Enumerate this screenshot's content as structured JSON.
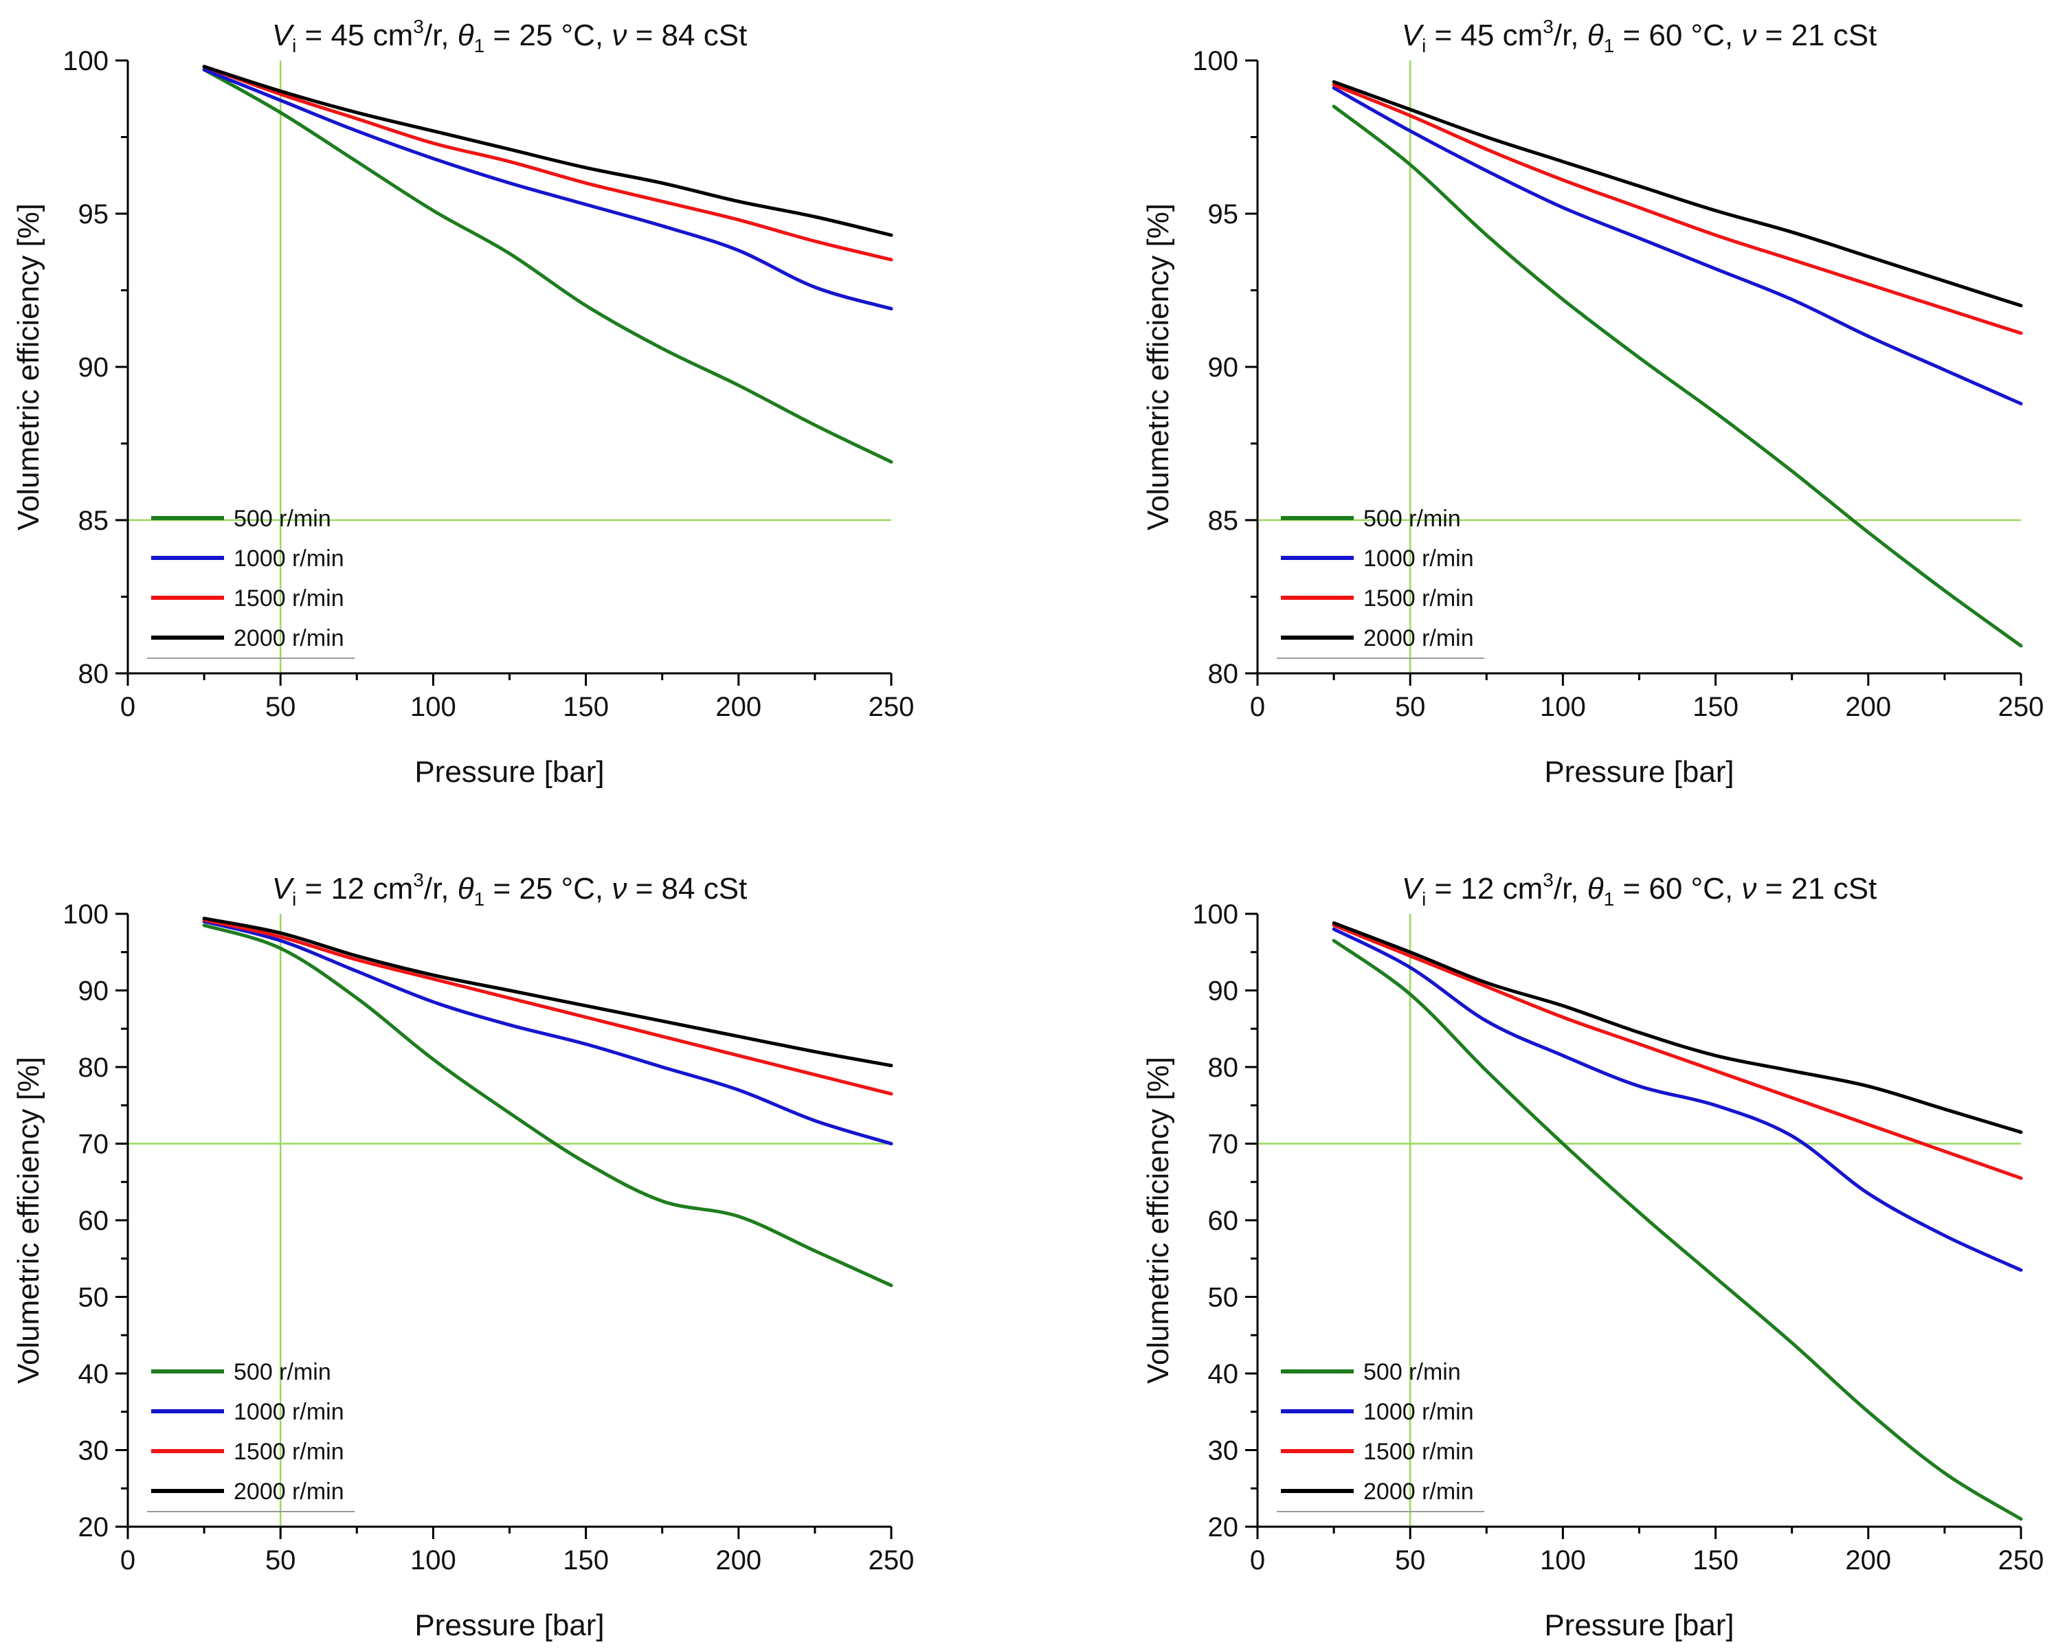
{
  "figure": {
    "colors": {
      "refline": "#9ad95a",
      "axis": "#000000",
      "text": "#111111",
      "legend_underline": "#9a9a9a"
    },
    "chart_data": [
      {
        "type": "line",
        "title": {
          "V_sym": "V",
          "V_sub": "i",
          "volume": "45 cm",
          "volume_sup": "3",
          "volume_unit": "/r,",
          "theta_sym": "θ",
          "theta_sub": "1",
          "temperature": "25 °C,",
          "nu_sym": "ν",
          "viscosity": "84 cSt"
        },
        "xlabel": "Pressure [bar]",
        "ylabel": "Volumetric efficiency [%]",
        "xlim": [
          0,
          250
        ],
        "ylim": [
          80,
          100
        ],
        "xticks": [
          0,
          50,
          100,
          150,
          200,
          250
        ],
        "yticks": [
          80,
          85,
          90,
          95,
          100
        ],
        "minor_ticks": true,
        "reference_lines": {
          "x": 50,
          "y": 85
        },
        "legend_position": "bottom-left",
        "series": [
          {
            "name": "500 r/min",
            "color": "#1e7d1e",
            "x": [
              25,
              50,
              75,
              100,
              125,
              150,
              175,
              200,
              225,
              250
            ],
            "y": [
              99.7,
              98.3,
              96.7,
              95.1,
              93.7,
              92.0,
              90.6,
              89.4,
              88.1,
              86.9
            ]
          },
          {
            "name": "1000 r/min",
            "color": "#1515cf",
            "x": [
              25,
              50,
              75,
              100,
              125,
              150,
              175,
              200,
              225,
              250
            ],
            "y": [
              99.7,
              98.7,
              97.7,
              96.8,
              96.0,
              95.3,
              94.6,
              93.8,
              92.6,
              91.9
            ]
          },
          {
            "name": "1500 r/min",
            "color": "#f01414",
            "x": [
              25,
              50,
              75,
              100,
              125,
              150,
              175,
              200,
              225,
              250
            ],
            "y": [
              99.8,
              98.9,
              98.1,
              97.3,
              96.7,
              96.0,
              95.4,
              94.8,
              94.1,
              93.5
            ]
          },
          {
            "name": "2000 r/min",
            "color": "#000000",
            "x": [
              25,
              50,
              75,
              100,
              125,
              150,
              175,
              200,
              225,
              250
            ],
            "y": [
              99.8,
              99.0,
              98.3,
              97.7,
              97.1,
              96.5,
              96.0,
              95.4,
              94.9,
              94.3
            ]
          }
        ]
      },
      {
        "type": "line",
        "title": {
          "V_sym": "V",
          "V_sub": "i",
          "volume": "45 cm",
          "volume_sup": "3",
          "volume_unit": "/r,",
          "theta_sym": "θ",
          "theta_sub": "1",
          "temperature": "60 °C,",
          "nu_sym": "ν",
          "viscosity": "21 cSt"
        },
        "xlabel": "Pressure [bar]",
        "ylabel": "Volumetric efficiency [%]",
        "xlim": [
          0,
          250
        ],
        "ylim": [
          80,
          100
        ],
        "xticks": [
          0,
          50,
          100,
          150,
          200,
          250
        ],
        "yticks": [
          80,
          85,
          90,
          95,
          100
        ],
        "minor_ticks": true,
        "reference_lines": {
          "x": 50,
          "y": 85
        },
        "legend_position": "bottom-left",
        "series": [
          {
            "name": "500 r/min",
            "color": "#1e7d1e",
            "x": [
              25,
              50,
              75,
              100,
              125,
              150,
              175,
              200,
              225,
              250
            ],
            "y": [
              98.5,
              96.6,
              94.3,
              92.2,
              90.3,
              88.5,
              86.6,
              84.6,
              82.7,
              80.9
            ]
          },
          {
            "name": "1000 r/min",
            "color": "#1515cf",
            "x": [
              25,
              50,
              75,
              100,
              125,
              150,
              175,
              200,
              225,
              250
            ],
            "y": [
              99.1,
              97.7,
              96.4,
              95.2,
              94.2,
              93.2,
              92.2,
              91.0,
              89.9,
              88.8
            ]
          },
          {
            "name": "1500 r/min",
            "color": "#f01414",
            "x": [
              25,
              50,
              75,
              100,
              125,
              150,
              175,
              200,
              225,
              250
            ],
            "y": [
              99.2,
              98.2,
              97.1,
              96.1,
              95.2,
              94.3,
              93.5,
              92.7,
              91.9,
              91.1
            ]
          },
          {
            "name": "2000 r/min",
            "color": "#000000",
            "x": [
              25,
              50,
              75,
              100,
              125,
              150,
              175,
              200,
              225,
              250
            ],
            "y": [
              99.3,
              98.4,
              97.5,
              96.7,
              95.9,
              95.1,
              94.4,
              93.6,
              92.8,
              92.0
            ]
          }
        ]
      },
      {
        "type": "line",
        "title": {
          "V_sym": "V",
          "V_sub": "i",
          "volume": "12 cm",
          "volume_sup": "3",
          "volume_unit": "/r,",
          "theta_sym": "θ",
          "theta_sub": "1",
          "temperature": "25 °C,",
          "nu_sym": "ν",
          "viscosity": "84 cSt"
        },
        "xlabel": "Pressure [bar]",
        "ylabel": "Volumetric efficiency [%]",
        "xlim": [
          0,
          250
        ],
        "ylim": [
          20,
          100
        ],
        "xticks": [
          0,
          50,
          100,
          150,
          200,
          250
        ],
        "yticks": [
          20,
          30,
          40,
          50,
          60,
          70,
          80,
          90,
          100
        ],
        "minor_ticks": true,
        "reference_lines": {
          "x": 50,
          "y": 70
        },
        "legend_position": "bottom-left",
        "series": [
          {
            "name": "500 r/min",
            "color": "#1e7d1e",
            "x": [
              25,
              50,
              75,
              100,
              125,
              150,
              175,
              200,
              225,
              250
            ],
            "y": [
              98.5,
              95.5,
              89.0,
              81.0,
              74.0,
              67.5,
              62.5,
              60.5,
              56.0,
              51.5
            ]
          },
          {
            "name": "1000 r/min",
            "color": "#1515cf",
            "x": [
              25,
              50,
              75,
              100,
              125,
              150,
              175,
              200,
              225,
              250
            ],
            "y": [
              99.0,
              96.5,
              92.5,
              88.5,
              85.5,
              83.0,
              80.0,
              77.0,
              73.0,
              70.0
            ]
          },
          {
            "name": "1500 r/min",
            "color": "#f01414",
            "x": [
              25,
              50,
              75,
              100,
              125,
              150,
              175,
              200,
              225,
              250
            ],
            "y": [
              99.2,
              97.0,
              94.0,
              91.5,
              89.0,
              86.5,
              84.0,
              81.5,
              79.0,
              76.5
            ]
          },
          {
            "name": "2000 r/min",
            "color": "#000000",
            "x": [
              25,
              50,
              75,
              100,
              125,
              150,
              175,
              200,
              225,
              250
            ],
            "y": [
              99.4,
              97.5,
              94.5,
              92.0,
              90.0,
              88.0,
              86.0,
              84.0,
              82.0,
              80.2
            ]
          }
        ]
      },
      {
        "type": "line",
        "title": {
          "V_sym": "V",
          "V_sub": "i",
          "volume": "12 cm",
          "volume_sup": "3",
          "volume_unit": "/r,",
          "theta_sym": "θ",
          "theta_sub": "1",
          "temperature": "60 °C,",
          "nu_sym": "ν",
          "viscosity": "21 cSt"
        },
        "xlabel": "Pressure [bar]",
        "ylabel": "Volumetric efficiency [%]",
        "xlim": [
          0,
          250
        ],
        "ylim": [
          20,
          100
        ],
        "xticks": [
          0,
          50,
          100,
          150,
          200,
          250
        ],
        "yticks": [
          20,
          30,
          40,
          50,
          60,
          70,
          80,
          90,
          100
        ],
        "minor_ticks": true,
        "reference_lines": {
          "x": 50,
          "y": 70
        },
        "legend_position": "bottom-left",
        "series": [
          {
            "name": "500 r/min",
            "color": "#1e7d1e",
            "x": [
              25,
              50,
              75,
              100,
              125,
              150,
              175,
              200,
              225,
              250
            ],
            "y": [
              96.5,
              89.5,
              79.5,
              70.0,
              61.0,
              52.5,
              44.0,
              35.0,
              27.0,
              21.0
            ]
          },
          {
            "name": "1000 r/min",
            "color": "#1515cf",
            "x": [
              25,
              50,
              75,
              100,
              125,
              150,
              175,
              200,
              225,
              250
            ],
            "y": [
              98.0,
              93.0,
              86.0,
              81.5,
              77.5,
              75.0,
              71.0,
              63.5,
              58.0,
              53.5
            ]
          },
          {
            "name": "1500 r/min",
            "color": "#f01414",
            "x": [
              25,
              50,
              75,
              100,
              125,
              150,
              175,
              200,
              225,
              250
            ],
            "y": [
              98.5,
              94.5,
              90.5,
              86.5,
              83.0,
              79.5,
              76.0,
              72.5,
              69.0,
              65.5
            ]
          },
          {
            "name": "2000 r/min",
            "color": "#000000",
            "x": [
              25,
              50,
              75,
              100,
              125,
              150,
              175,
              200,
              225,
              250
            ],
            "y": [
              98.8,
              95.0,
              91.0,
              88.0,
              84.5,
              81.5,
              79.5,
              77.5,
              74.5,
              71.5
            ]
          }
        ]
      }
    ]
  }
}
